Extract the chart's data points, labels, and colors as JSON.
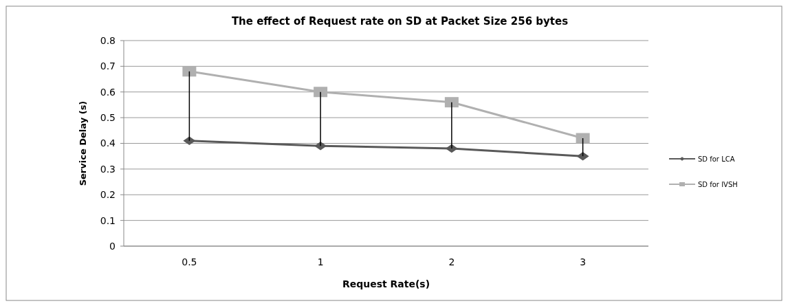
{
  "chart_data": {
    "type": "line",
    "title": "The effect of Request rate on SD at Packet Size 256 bytes",
    "xlabel": "Request Rate(s)",
    "ylabel": "Service Delay (s)",
    "categories": [
      "0.5",
      "1",
      "2",
      "3"
    ],
    "series": [
      {
        "name": "SD for LCA",
        "color": "#595959",
        "marker": "diamond",
        "values": [
          0.41,
          0.39,
          0.38,
          0.35
        ],
        "errors": [
          [
            0.41,
            0.68
          ],
          [
            0.39,
            0.6
          ],
          [
            0.38,
            0.56
          ],
          [
            0.35,
            0.42
          ]
        ]
      },
      {
        "name": "SD for IVSH",
        "color": "#b0b0b0",
        "marker": "square",
        "values": [
          0.68,
          0.6,
          0.56,
          0.42
        ]
      }
    ],
    "ylim": [
      0,
      0.8
    ],
    "yticks": [
      0,
      0.1,
      0.2,
      0.3,
      0.4,
      0.5,
      0.6,
      0.7,
      0.8
    ],
    "grid": "y",
    "legend": "right"
  }
}
